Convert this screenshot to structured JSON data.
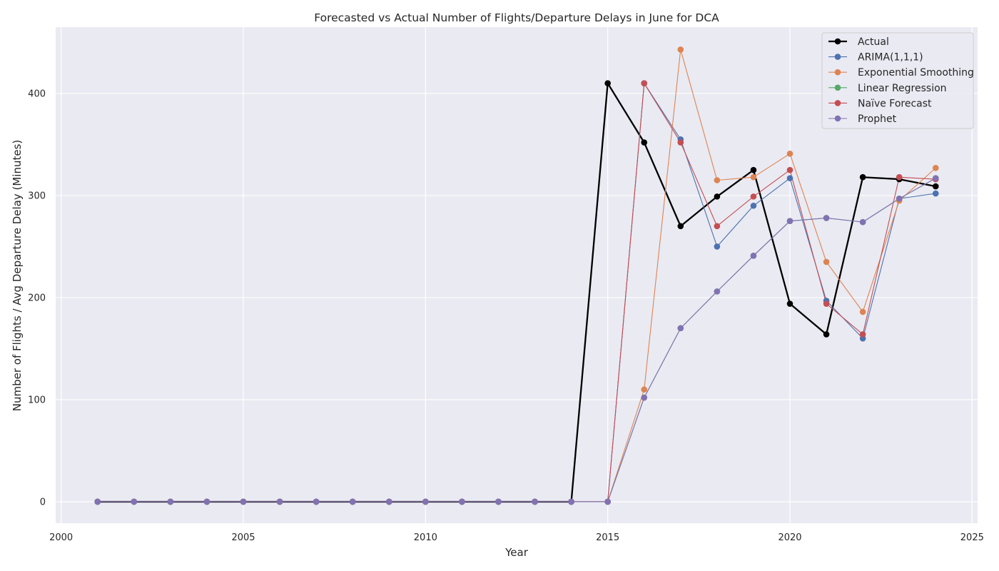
{
  "chart_data": {
    "type": "line",
    "title": "Forecasted vs Actual Number of Flights/Departure Delays in June for DCA",
    "xlabel": "Year",
    "ylabel": "Number of Flights / Avg Departure Delay (Minutes)",
    "xlim": [
      1999.85,
      2025.15
    ],
    "ylim": [
      -21,
      465
    ],
    "xticks": [
      2000,
      2005,
      2010,
      2015,
      2020,
      2025
    ],
    "yticks": [
      0,
      100,
      200,
      300,
      400
    ],
    "grid": true,
    "legend_position": "top-right",
    "x": [
      2001,
      2002,
      2003,
      2004,
      2005,
      2006,
      2007,
      2008,
      2009,
      2010,
      2011,
      2012,
      2013,
      2014,
      2015,
      2016,
      2017,
      2018,
      2019,
      2020,
      2021,
      2022,
      2023,
      2024
    ],
    "series": [
      {
        "name": "Actual",
        "color": "#000000",
        "values": [
          0,
          0,
          0,
          0,
          0,
          0,
          0,
          0,
          0,
          0,
          0,
          0,
          0,
          0,
          410,
          352,
          270,
          299,
          325,
          194,
          164,
          318,
          316,
          309
        ]
      },
      {
        "name": "ARIMA(1,1,1)",
        "color": "#4C72B0",
        "values": [
          0,
          0,
          0,
          0,
          0,
          0,
          0,
          0,
          0,
          0,
          0,
          0,
          0,
          0,
          0,
          410,
          355,
          250,
          290,
          317,
          197,
          160,
          297,
          302
        ]
      },
      {
        "name": "Exponential Smoothing",
        "color": "#DD8452",
        "values": [
          0,
          0,
          0,
          0,
          0,
          0,
          0,
          0,
          0,
          0,
          0,
          0,
          0,
          0,
          0,
          110,
          443,
          315,
          318,
          341,
          235,
          186,
          295,
          327
        ]
      },
      {
        "name": "Linear Regression",
        "color": "#55A868",
        "values": [
          0,
          0,
          0,
          0,
          0,
          0,
          0,
          0,
          0,
          0,
          0,
          0,
          0,
          0,
          0,
          102,
          170,
          206,
          241,
          275,
          278,
          274,
          297,
          317
        ]
      },
      {
        "name": "Naïve Forecast",
        "color": "#C44E52",
        "values": [
          0,
          0,
          0,
          0,
          0,
          0,
          0,
          0,
          0,
          0,
          0,
          0,
          0,
          0,
          0,
          410,
          352,
          270,
          299,
          325,
          194,
          164,
          318,
          316
        ]
      },
      {
        "name": "Prophet",
        "color": "#8172B3",
        "values": [
          0,
          0,
          0,
          0,
          0,
          0,
          0,
          0,
          0,
          0,
          0,
          0,
          0,
          0,
          0,
          102,
          170,
          206,
          241,
          275,
          278,
          274,
          297,
          317
        ]
      }
    ]
  }
}
